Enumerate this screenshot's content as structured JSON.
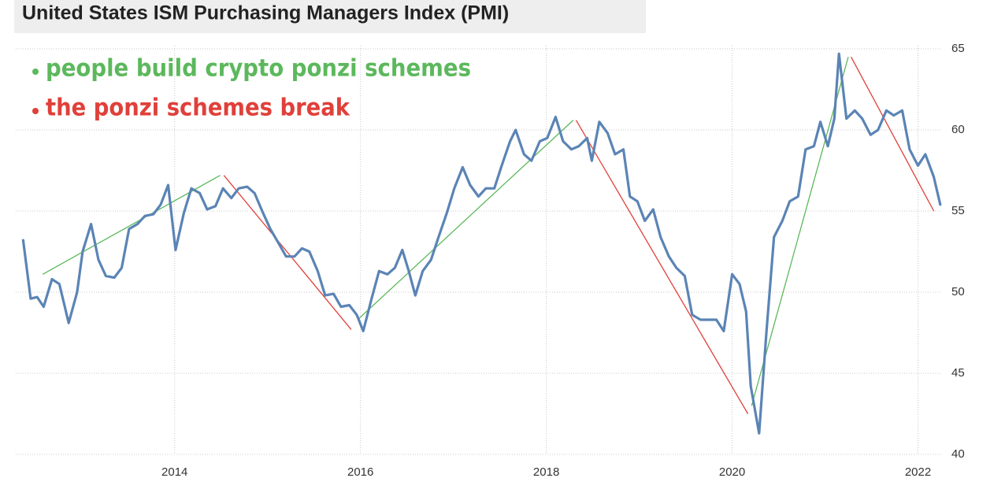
{
  "chart_data": {
    "type": "line",
    "title": "United States ISM Purchasing Managers Index (PMI)",
    "color": "#5b84b5",
    "x": [
      2012.37,
      2012.45,
      2012.52,
      2012.59,
      2012.68,
      2012.76,
      2012.86,
      2012.95,
      2013.01,
      2013.1,
      2013.18,
      2013.26,
      2013.35,
      2013.43,
      2013.51,
      2013.6,
      2013.68,
      2013.77,
      2013.85,
      2013.93,
      2014.01,
      2014.1,
      2014.18,
      2014.27,
      2014.35,
      2014.44,
      2014.52,
      2014.61,
      2014.69,
      2014.78,
      2014.86,
      2014.95,
      2015.03,
      2015.12,
      2015.2,
      2015.29,
      2015.37,
      2015.45,
      2015.54,
      2015.62,
      2015.71,
      2015.79,
      2015.88,
      2015.96,
      2016.03,
      2016.12,
      2016.2,
      2016.29,
      2016.37,
      2016.45,
      2016.52,
      2016.59,
      2016.67,
      2016.76,
      2016.84,
      2016.93,
      2017.01,
      2017.1,
      2017.18,
      2017.27,
      2017.35,
      2017.44,
      2017.52,
      2017.61,
      2017.67,
      2017.76,
      2017.84,
      2017.93,
      2018.01,
      2018.1,
      2018.18,
      2018.27,
      2018.35,
      2018.44,
      2018.49,
      2018.57,
      2018.66,
      2018.74,
      2018.83,
      2018.9,
      2018.98,
      2019.06,
      2019.15,
      2019.23,
      2019.32,
      2019.4,
      2019.49,
      2019.57,
      2019.66,
      2019.74,
      2019.83,
      2019.91,
      2020.0,
      2020.08,
      2020.15,
      2020.2,
      2020.29,
      2020.37,
      2020.45,
      2020.54,
      2020.62,
      2020.71,
      2020.79,
      2020.88,
      2020.95,
      2021.03,
      2021.1,
      2021.15,
      2021.23,
      2021.32,
      2021.4,
      2021.49,
      2021.57,
      2021.66,
      2021.74,
      2021.83,
      2021.91,
      2022.0,
      2022.08,
      2022.17,
      2022.24
    ],
    "values": [
      53.2,
      49.6,
      49.7,
      49.1,
      50.8,
      50.5,
      48.1,
      50.0,
      52.5,
      54.2,
      52.0,
      51.0,
      50.9,
      51.5,
      53.9,
      54.2,
      54.7,
      54.8,
      55.4,
      56.6,
      52.6,
      54.9,
      56.4,
      56.1,
      55.1,
      55.3,
      56.4,
      55.8,
      56.4,
      56.5,
      56.1,
      54.9,
      53.9,
      53.0,
      52.2,
      52.2,
      52.7,
      52.5,
      51.3,
      49.8,
      49.9,
      49.1,
      49.2,
      48.6,
      47.6,
      49.6,
      51.3,
      51.1,
      51.5,
      52.6,
      51.3,
      49.8,
      51.3,
      52.0,
      53.4,
      54.9,
      56.4,
      57.7,
      56.6,
      55.9,
      56.4,
      56.4,
      57.8,
      59.3,
      60.0,
      58.5,
      58.1,
      59.3,
      59.5,
      60.8,
      59.3,
      58.8,
      59.0,
      59.5,
      58.1,
      60.5,
      59.8,
      58.5,
      58.8,
      55.9,
      55.6,
      54.4,
      55.1,
      53.4,
      52.2,
      51.5,
      51.0,
      48.6,
      48.3,
      48.3,
      48.3,
      47.6,
      51.1,
      50.5,
      48.8,
      44.2,
      41.3,
      47.6,
      53.4,
      54.4,
      55.6,
      55.9,
      58.8,
      59.0,
      60.5,
      59.0,
      60.7,
      64.7,
      60.7,
      61.2,
      60.7,
      59.7,
      60.0,
      61.2,
      60.9,
      61.2,
      58.8,
      57.8,
      58.5,
      57.1,
      55.4
    ],
    "xlim": [
      2012.29,
      2022.25
    ],
    "xticks": [
      2014,
      2016,
      2018,
      2020,
      2022
    ],
    "ylim": [
      40,
      65
    ],
    "yticks": [
      40,
      45,
      50,
      55,
      60,
      65
    ],
    "grid": true,
    "legend": [
      {
        "text": "people build crypto ponzi schemes",
        "color": "#5cb85c"
      },
      {
        "text": "the ponzi schemes break",
        "color": "#e0403a"
      }
    ],
    "trend_lines": [
      {
        "color": "#5cb85c",
        "x": [
          2012.58,
          2014.49
        ],
        "values": [
          51.1,
          57.2
        ]
      },
      {
        "color": "#e0403a",
        "x": [
          2014.53,
          2015.9
        ],
        "values": [
          57.2,
          47.7
        ]
      },
      {
        "color": "#5cb85c",
        "x": [
          2015.97,
          2018.29
        ],
        "values": [
          48.3,
          60.6
        ]
      },
      {
        "color": "#e0403a",
        "x": [
          2018.32,
          2020.17
        ],
        "values": [
          60.6,
          42.5
        ]
      },
      {
        "color": "#5cb85c",
        "x": [
          2020.21,
          2021.25
        ],
        "values": [
          43.0,
          64.5
        ]
      },
      {
        "color": "#e0403a",
        "x": [
          2021.28,
          2022.17
        ],
        "values": [
          64.5,
          55.0
        ]
      }
    ]
  }
}
